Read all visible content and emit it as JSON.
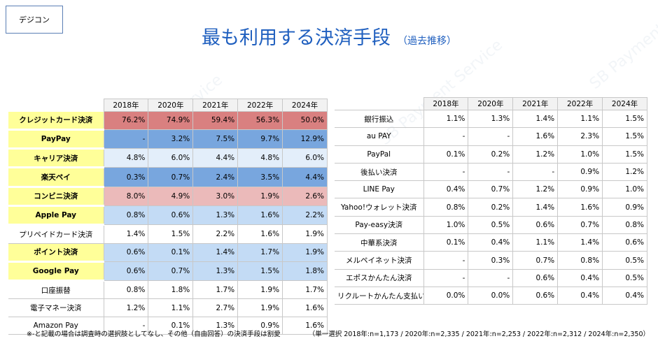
{
  "tag": "デジコン",
  "title": "最も利用する決済手段",
  "subtitle": "（過去推移）",
  "watermark": "SB Payment Service",
  "left_table": {
    "headers": [
      "2018年",
      "2020年",
      "2021年",
      "2022年",
      "2024年"
    ],
    "rows": [
      {
        "label": "クレジットカード決済",
        "highlight": true,
        "color": "#d98080",
        "cells": [
          "76.2%",
          "74.9%",
          "59.4%",
          "56.3%",
          "50.0%"
        ]
      },
      {
        "label": "PayPay",
        "highlight": true,
        "color": "#78a6de",
        "cells": [
          "-",
          "3.2%",
          "7.5%",
          "9.7%",
          "12.9%"
        ]
      },
      {
        "label": "キャリア決済",
        "highlight": true,
        "color": "#e3eefa",
        "cells": [
          "4.8%",
          "6.0%",
          "4.4%",
          "4.8%",
          "6.0%"
        ]
      },
      {
        "label": "楽天ペイ",
        "highlight": true,
        "color": "#78a6de",
        "cells": [
          "0.3%",
          "0.7%",
          "2.4%",
          "3.5%",
          "4.4%"
        ]
      },
      {
        "label": "コンビニ決済",
        "highlight": true,
        "color": "#ebbaba",
        "cells": [
          "8.0%",
          "4.9%",
          "3.0%",
          "1.9%",
          "2.6%"
        ]
      },
      {
        "label": "Apple Pay",
        "highlight": true,
        "color": "#c3dbf5",
        "cells": [
          "0.8%",
          "0.6%",
          "1.3%",
          "1.6%",
          "2.2%"
        ]
      },
      {
        "label": "プリペイドカード決済",
        "highlight": false,
        "color": "#ffffff",
        "cells": [
          "1.4%",
          "1.5%",
          "2.2%",
          "1.6%",
          "1.9%"
        ]
      },
      {
        "label": "ポイント決済",
        "highlight": true,
        "color": "#c3dbf5",
        "cells": [
          "0.6%",
          "0.1%",
          "1.4%",
          "1.7%",
          "1.9%"
        ]
      },
      {
        "label": "Google Pay",
        "highlight": true,
        "color": "#c3dbf5",
        "cells": [
          "0.6%",
          "0.7%",
          "1.3%",
          "1.5%",
          "1.8%"
        ]
      },
      {
        "label": "口座振替",
        "highlight": false,
        "color": "#ffffff",
        "cells": [
          "0.8%",
          "1.8%",
          "1.7%",
          "1.9%",
          "1.7%"
        ]
      },
      {
        "label": "電子マネー決済",
        "highlight": false,
        "color": "#ffffff",
        "cells": [
          "1.2%",
          "1.1%",
          "2.7%",
          "1.9%",
          "1.6%"
        ]
      },
      {
        "label": "Amazon Pay",
        "highlight": false,
        "color": "#ffffff",
        "cells": [
          "-",
          "0.1%",
          "1.3%",
          "0.9%",
          "1.6%"
        ]
      }
    ]
  },
  "right_table": {
    "headers": [
      "2018年",
      "2020年",
      "2021年",
      "2022年",
      "2024年"
    ],
    "rows": [
      {
        "label": "銀行振込",
        "cells": [
          "1.1%",
          "1.3%",
          "1.4%",
          "1.1%",
          "1.5%"
        ]
      },
      {
        "label": "au PAY",
        "cells": [
          "-",
          "-",
          "1.6%",
          "2.3%",
          "1.5%"
        ]
      },
      {
        "label": "PayPal",
        "cells": [
          "0.1%",
          "0.2%",
          "1.2%",
          "1.0%",
          "1.5%"
        ]
      },
      {
        "label": "後払い決済",
        "cells": [
          "-",
          "-",
          "-",
          "0.9%",
          "1.2%"
        ]
      },
      {
        "label": "LINE Pay",
        "cells": [
          "0.4%",
          "0.7%",
          "1.2%",
          "0.9%",
          "1.0%"
        ]
      },
      {
        "label": "Yahoo!ウォレット決済",
        "cells": [
          "0.8%",
          "0.2%",
          "1.4%",
          "1.6%",
          "0.9%"
        ]
      },
      {
        "label": "Pay-easy決済",
        "cells": [
          "1.0%",
          "0.5%",
          "0.6%",
          "0.7%",
          "0.8%"
        ]
      },
      {
        "label": "中華系決済",
        "cells": [
          "0.1%",
          "0.4%",
          "1.1%",
          "1.4%",
          "0.6%"
        ]
      },
      {
        "label": "メルペイネット決済",
        "cells": [
          "-",
          "0.3%",
          "0.7%",
          "0.8%",
          "0.5%"
        ]
      },
      {
        "label": "エポスかんたん決済",
        "cells": [
          "-",
          "-",
          "0.6%",
          "0.4%",
          "0.5%"
        ]
      },
      {
        "label": "リクルートかんたん支払い",
        "cells": [
          "0.0%",
          "0.0%",
          "0.6%",
          "0.4%",
          "0.4%"
        ]
      }
    ]
  },
  "footnote_left": "※-と記載の場合は調査時の選択肢としてなし、その他（自由回答）の決済手段は割愛",
  "footnote_right": "（単一選択 2018年:n=1,173 / 2020年:n=2,335 / 2021年:n=2,253 / 2022年:n=2,312 / 2024年:n=2,350）"
}
